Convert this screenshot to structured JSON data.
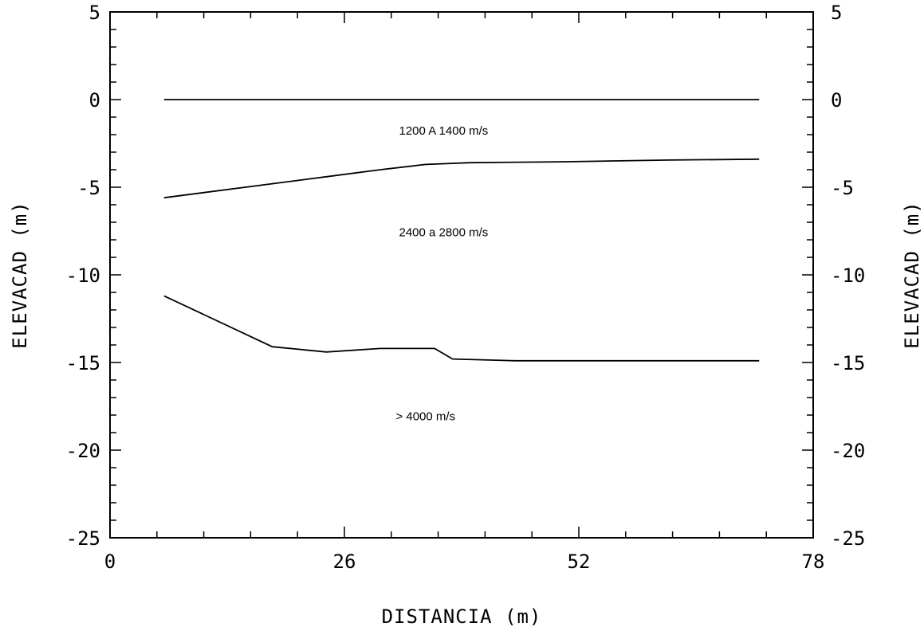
{
  "chart_data": {
    "type": "line",
    "title": "",
    "xlabel": "DISTANCIA (m)",
    "ylabel_left": "ELEVACAD (m)",
    "ylabel_right": "ELEVACAD (m)",
    "xlim": [
      0,
      78
    ],
    "ylim": [
      -25,
      5
    ],
    "x_ticks": [
      0,
      26,
      52,
      78
    ],
    "y_ticks": [
      5,
      0,
      -5,
      -10,
      -15,
      -20,
      -25
    ],
    "x_tick_labels": [
      "0",
      "26",
      "52",
      "78"
    ],
    "y_tick_labels": [
      "5",
      "0",
      "-5",
      "-10",
      "-15",
      "-20",
      "-25"
    ],
    "grid": false,
    "series": [
      {
        "x": [
          6,
          72
        ],
        "y": [
          0,
          0
        ]
      },
      {
        "x": [
          6,
          18,
          24,
          30,
          35,
          40,
          50,
          62,
          72
        ],
        "y": [
          -5.6,
          -4.8,
          -4.4,
          -4.0,
          -3.7,
          -3.6,
          -3.55,
          -3.45,
          -3.4
        ]
      },
      {
        "x": [
          6,
          18,
          24,
          30,
          36,
          38,
          45,
          55,
          72
        ],
        "y": [
          -11.2,
          -14.1,
          -14.4,
          -14.2,
          -14.2,
          -14.8,
          -14.9,
          -14.9,
          -14.9
        ]
      }
    ],
    "annotations": [
      {
        "text": "1200 A 1400 m/s",
        "x": 37,
        "y": -2.0
      },
      {
        "text": "2400 a 2800 m/s",
        "x": 37,
        "y": -7.8
      },
      {
        "text": "> 4000 m/s",
        "x": 35,
        "y": -18.3
      }
    ]
  }
}
